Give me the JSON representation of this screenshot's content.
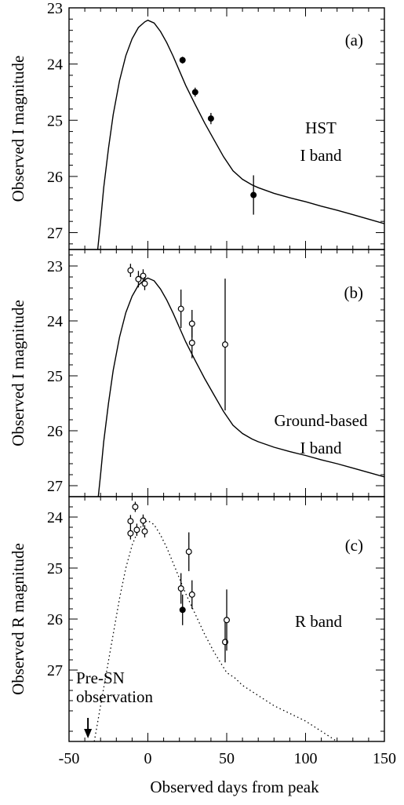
{
  "chart_data": {
    "type": "scatter",
    "xlabel": "Observed days from peak",
    "xlim": [
      -50,
      150
    ],
    "xticks": [
      "-50",
      "0",
      "50",
      "100",
      "150"
    ],
    "panels": [
      {
        "id": "a",
        "panel_label": "(a)",
        "annotation": [
          "HST",
          "I band"
        ],
        "ylabel": "Observed I magnitude",
        "ylim": [
          23.0,
          27.3
        ],
        "y_inverted": true,
        "yticks": [
          "23",
          "24",
          "25",
          "26",
          "27"
        ],
        "model_curve": {
          "style": "solid",
          "x": [
            -32,
            -30,
            -28,
            -25,
            -22,
            -18,
            -14,
            -10,
            -6,
            -2,
            0,
            4,
            8,
            12,
            16,
            20,
            24,
            30,
            36,
            42,
            48,
            54,
            60,
            66,
            70,
            75,
            80,
            90,
            100,
            110,
            120,
            130,
            140,
            150
          ],
          "y": [
            27.35,
            26.8,
            26.2,
            25.5,
            24.9,
            24.3,
            23.85,
            23.55,
            23.35,
            23.25,
            23.22,
            23.27,
            23.42,
            23.62,
            23.86,
            24.12,
            24.38,
            24.72,
            25.05,
            25.35,
            25.65,
            25.9,
            26.05,
            26.15,
            26.2,
            26.25,
            26.3,
            26.38,
            26.45,
            26.53,
            26.6,
            26.68,
            26.76,
            26.84
          ]
        },
        "points": [
          {
            "x": 22,
            "y": 23.93,
            "err": 0.06,
            "filled": true
          },
          {
            "x": 30,
            "y": 24.5,
            "err": 0.08,
            "filled": true
          },
          {
            "x": 40,
            "y": 24.97,
            "err": 0.1,
            "filled": true
          },
          {
            "x": 67,
            "y": 26.33,
            "err": 0.35,
            "filled": true
          }
        ]
      },
      {
        "id": "b",
        "panel_label": "(b)",
        "annotation": [
          "Ground-based",
          "I band"
        ],
        "ylabel": "Observed I magnitude",
        "ylim": [
          22.7,
          27.2
        ],
        "y_inverted": true,
        "yticks": [
          "23",
          "24",
          "25",
          "26",
          "27"
        ],
        "model_curve": {
          "style": "solid",
          "x": [
            -32,
            -30,
            -28,
            -25,
            -22,
            -18,
            -14,
            -10,
            -6,
            -2,
            0,
            4,
            8,
            12,
            16,
            20,
            24,
            30,
            36,
            42,
            48,
            54,
            60,
            66,
            70,
            75,
            80,
            90,
            100,
            110,
            120,
            130,
            140,
            150
          ],
          "y": [
            27.35,
            26.8,
            26.2,
            25.5,
            24.9,
            24.3,
            23.85,
            23.55,
            23.35,
            23.25,
            23.22,
            23.27,
            23.42,
            23.62,
            23.86,
            24.12,
            24.38,
            24.72,
            25.05,
            25.35,
            25.65,
            25.9,
            26.05,
            26.15,
            26.2,
            26.25,
            26.3,
            26.38,
            26.45,
            26.53,
            26.6,
            26.68,
            26.76,
            26.84
          ]
        },
        "points": [
          {
            "x": -11,
            "y": 23.08,
            "err": 0.12,
            "filled": false
          },
          {
            "x": -6,
            "y": 23.24,
            "err": 0.15,
            "filled": false
          },
          {
            "x": -3,
            "y": 23.18,
            "err": 0.12,
            "filled": false
          },
          {
            "x": -2,
            "y": 23.32,
            "err": 0.12,
            "filled": false
          },
          {
            "x": 21,
            "y": 23.78,
            "err": 0.35,
            "filled": false
          },
          {
            "x": 28,
            "y": 24.05,
            "err": 0.25,
            "filled": false
          },
          {
            "x": 28,
            "y": 24.4,
            "err": 0.28,
            "filled": false
          },
          {
            "x": 49,
            "y": 24.43,
            "err": 1.2,
            "filled": false
          }
        ]
      },
      {
        "id": "c",
        "panel_label": "(c)",
        "annotation": [
          "R band"
        ],
        "ylabel": "Observed R magnitude",
        "ylim": [
          23.6,
          28.4
        ],
        "y_inverted": true,
        "yticks": [
          "24",
          "25",
          "26",
          "27"
        ],
        "model_curve": {
          "style": "dotted",
          "x": [
            -34,
            -30,
            -26,
            -22,
            -18,
            -14,
            -10,
            -6,
            -2,
            0,
            4,
            8,
            12,
            16,
            20,
            24,
            30,
            36,
            42,
            48,
            50,
            55,
            60,
            70,
            80,
            90,
            100,
            110,
            120
          ],
          "y": [
            28.4,
            27.7,
            27.0,
            26.3,
            25.6,
            25.0,
            24.55,
            24.25,
            24.1,
            24.07,
            24.15,
            24.35,
            24.6,
            24.9,
            25.2,
            25.5,
            25.9,
            26.3,
            26.65,
            26.95,
            27.05,
            27.15,
            27.3,
            27.5,
            27.7,
            27.85,
            28.0,
            28.2,
            28.4
          ]
        },
        "points": [
          {
            "x": -11,
            "y": 24.32,
            "err": 0.12,
            "filled": false
          },
          {
            "x": -11,
            "y": 24.08,
            "err": 0.12,
            "filled": false
          },
          {
            "x": -8,
            "y": 23.8,
            "err": 0.1,
            "filled": false
          },
          {
            "x": -7,
            "y": 24.25,
            "err": 0.12,
            "filled": false
          },
          {
            "x": -3,
            "y": 24.07,
            "err": 0.12,
            "filled": false
          },
          {
            "x": -2,
            "y": 24.28,
            "err": 0.12,
            "filled": false
          },
          {
            "x": 21,
            "y": 25.4,
            "err": 0.3,
            "filled": false
          },
          {
            "x": 22,
            "y": 25.82,
            "err": 0.3,
            "filled": true
          },
          {
            "x": 26,
            "y": 24.68,
            "err": 0.38,
            "filled": false
          },
          {
            "x": 28,
            "y": 25.52,
            "err": 0.28,
            "filled": false
          },
          {
            "x": 49,
            "y": 26.45,
            "err": 0.4,
            "filled": false
          },
          {
            "x": 50,
            "y": 26.02,
            "err": 0.6,
            "filled": false
          }
        ],
        "pre_sn_marker": {
          "x": -38,
          "label": [
            "Pre-SN",
            "observation"
          ]
        }
      }
    ]
  }
}
